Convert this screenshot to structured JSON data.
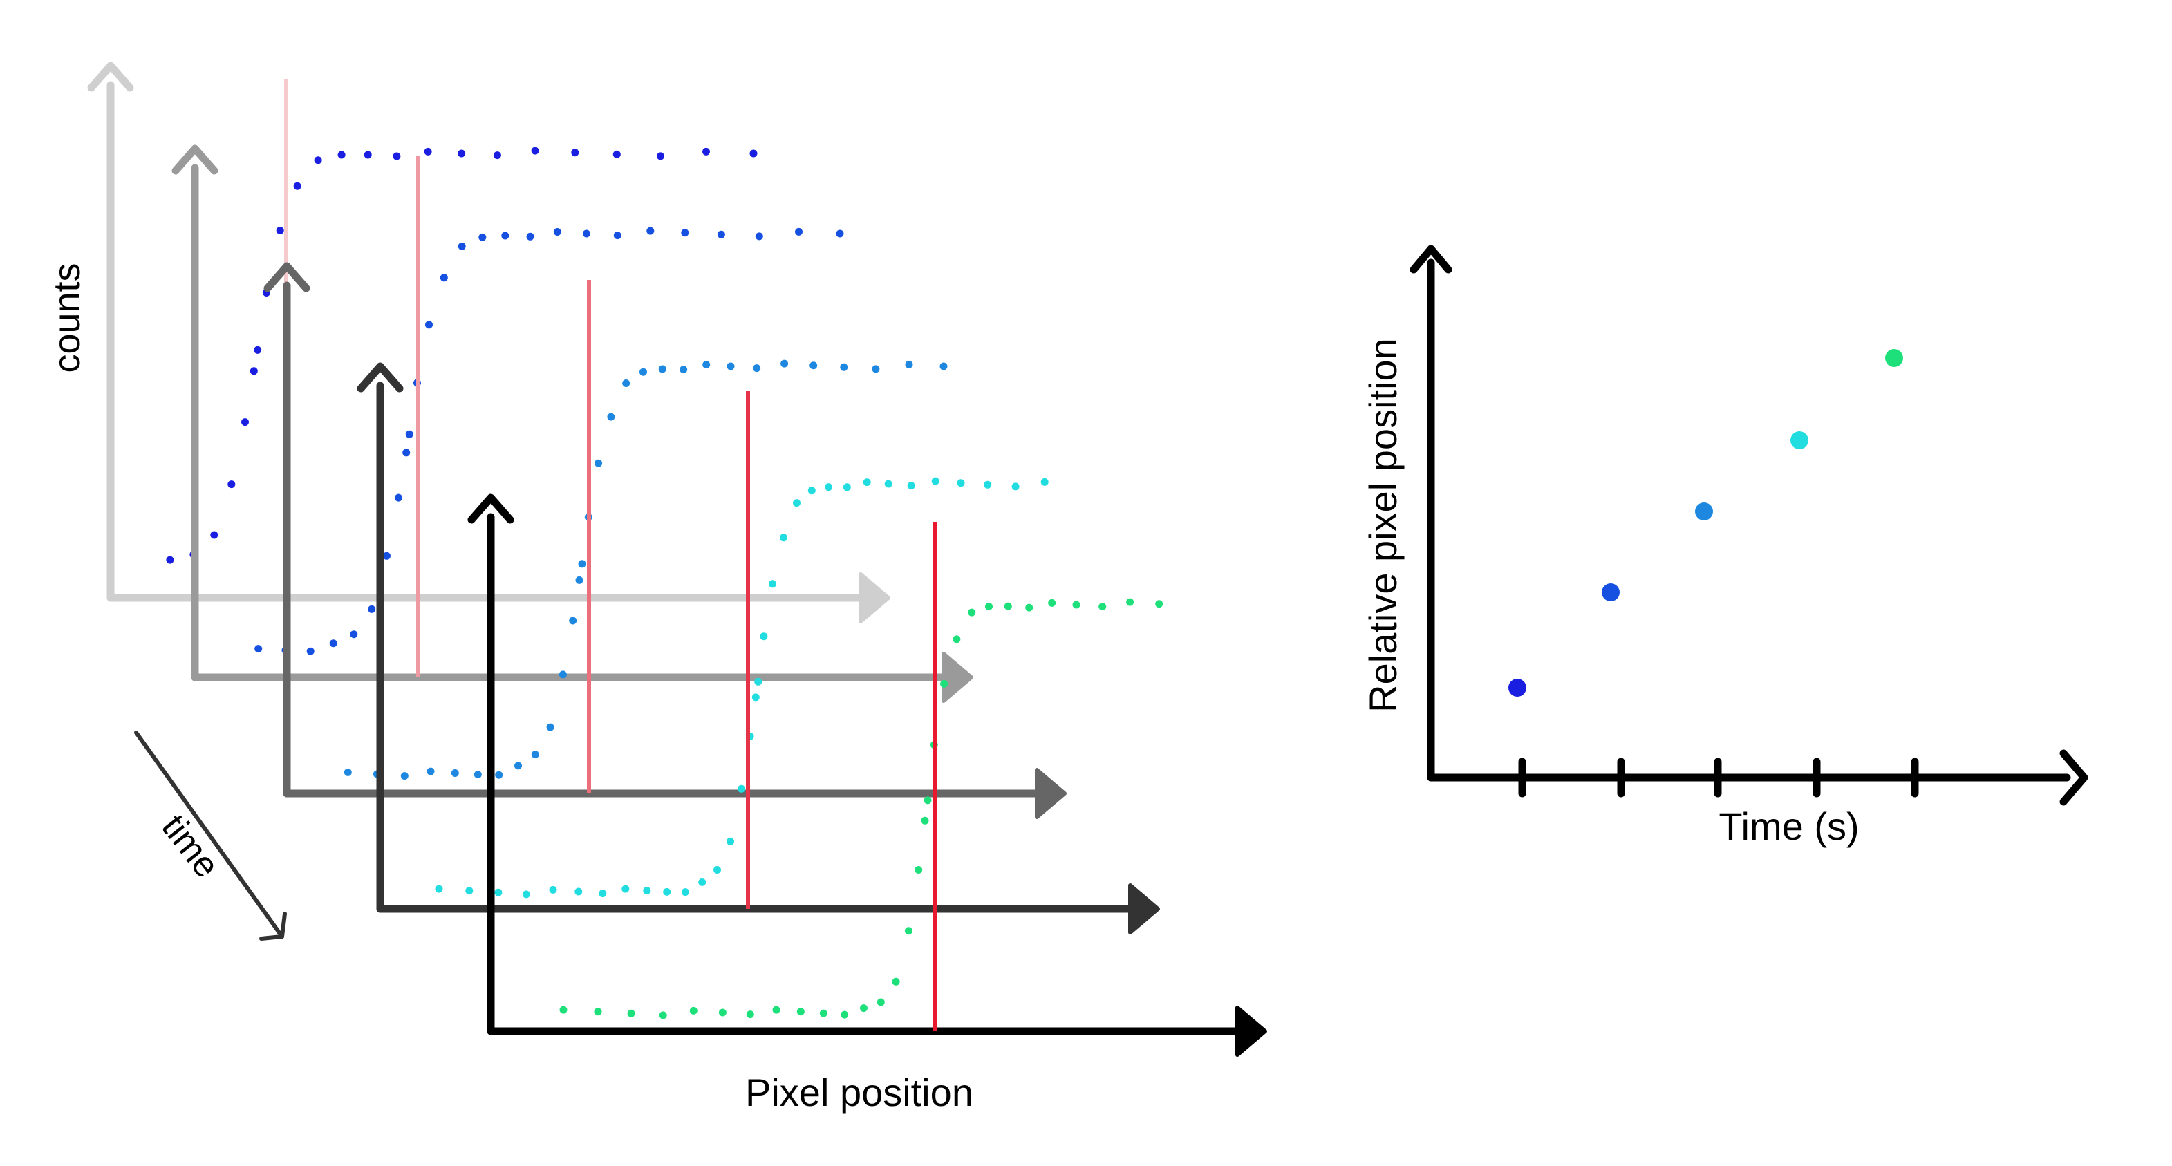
{
  "left_panel": {
    "y_label": "counts",
    "x_label": "Pixel position",
    "time_label": "time",
    "frames": [
      {
        "axis_color": "#cfcfcf",
        "marker_color": "#f6c9cc",
        "dot_color": "#1a1ee0"
      },
      {
        "axis_color": "#9a9a9a",
        "marker_color": "#ef9aa2",
        "dot_color": "#1550e0"
      },
      {
        "axis_color": "#666666",
        "marker_color": "#ec6f7c",
        "dot_color": "#1e88e0"
      },
      {
        "axis_color": "#333333",
        "marker_color": "#e53447",
        "dot_color": "#22dde0"
      },
      {
        "axis_color": "#000000",
        "marker_color": "#e8182f",
        "dot_color": "#1ee07a"
      }
    ]
  },
  "right_panel": {
    "y_label": "Relative pixel position",
    "x_label": "Time (s)",
    "points": [
      {
        "color": "#1a1ee0"
      },
      {
        "color": "#1550e0"
      },
      {
        "color": "#1e88e0"
      },
      {
        "color": "#22dde0"
      },
      {
        "color": "#1ee07a"
      }
    ]
  }
}
